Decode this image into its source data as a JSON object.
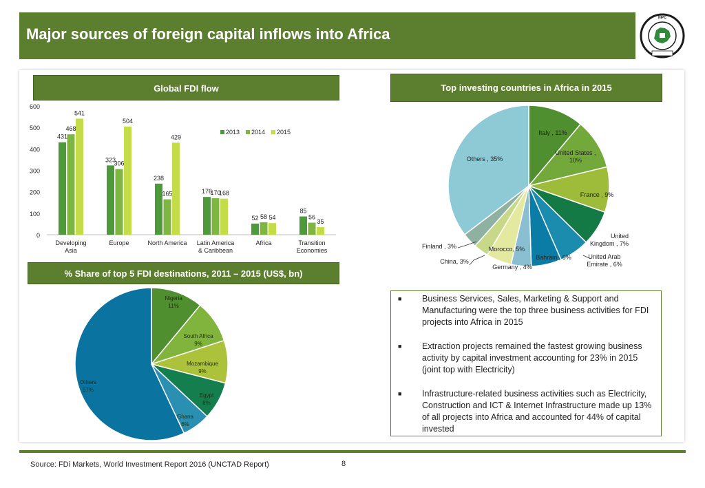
{
  "page": {
    "title": "Major sources of foreign capital inflows into Africa",
    "source": "Source: FDi Markets, World Investment Report 2016 (UNCTAD Report)",
    "page_number": "8",
    "logo_text": "NIGERIAN INVESTMENT PROMOTION COMMISSION"
  },
  "headers": {
    "global_fdi": "Global FDI flow",
    "top_countries": "Top investing countries in Africa in 2015",
    "top_destinations": "% Share of top 5 FDI destinations, 2011 – 2015 (US$, bn)"
  },
  "bullets": [
    "Business Services, Sales, Marketing & Support and Manufacturing were the top three business activities for FDI projects into Africa in 2015",
    "Extraction projects remained the fastest growing business activity by capital investment accounting for 23% in 2015 (joint top with Electricity)",
    "Infrastructure-related business activities such as Electricity, Construction and ICT & Internet Infrastructure made up 13% of all projects into Africa and accounted for 44% of capital invested"
  ],
  "colors": {
    "brand_green": "#5b7f2e",
    "s2013": "#4e9a3a",
    "s2014": "#7fb641",
    "s2015": "#c5dc49"
  },
  "chart_data": [
    {
      "type": "bar",
      "categories": [
        [
          "Developing",
          "Asia"
        ],
        [
          "Europe"
        ],
        [
          "North America"
        ],
        [
          "Latin America",
          "& Caribbean"
        ],
        [
          "Africa"
        ],
        [
          "Transition",
          "Economies"
        ]
      ],
      "series": [
        {
          "name": "2013",
          "values": [
            431,
            323,
            238,
            176,
            52,
            85
          ],
          "color": "#4e9a3a"
        },
        {
          "name": "2014",
          "values": [
            468,
            306,
            165,
            170,
            58,
            56
          ],
          "color": "#7fb641"
        },
        {
          "name": "2015",
          "values": [
            541,
            504,
            429,
            168,
            54,
            35
          ],
          "color": "#c5dc49"
        }
      ],
      "y_ticks": [
        0,
        100,
        200,
        300,
        400,
        500,
        600
      ],
      "ylim": [
        0,
        600
      ],
      "legend": "top-right",
      "grid": false
    },
    {
      "type": "pie",
      "slices": [
        {
          "label": "Italy , 11%",
          "value": 11,
          "color": "#4f8f2f"
        },
        {
          "label": "United States , 10%",
          "value": 10,
          "color": "#72a93a"
        },
        {
          "label": "France , 9%",
          "value": 9,
          "color": "#9ebc3a"
        },
        {
          "label": "United Kingdom , 7%",
          "value": 7,
          "color": "#137a45"
        },
        {
          "label": "United Arab Emirate , 6%",
          "value": 6,
          "color": "#1b8cad"
        },
        {
          "label": "Bahrain , 6%",
          "value": 6,
          "color": "#0b7ca6"
        },
        {
          "label": "Germany , 4%",
          "value": 4,
          "color": "#89bfd0"
        },
        {
          "label": "Morocco, 5%",
          "value": 5,
          "color": "#e4e9a0"
        },
        {
          "label": "China, 3%",
          "value": 3,
          "color": "#c7d988"
        },
        {
          "label": "Finland , 3%",
          "value": 3,
          "color": "#8fb1a2"
        },
        {
          "label": "Others , 35%",
          "value": 35,
          "color": "#8ec9d6"
        }
      ]
    },
    {
      "type": "pie",
      "slices": [
        {
          "label": "Nigeria",
          "pct": "11%",
          "value": 11,
          "color": "#4f8f2f"
        },
        {
          "label": "South Africa",
          "pct": "9%",
          "value": 9,
          "color": "#80b43c"
        },
        {
          "label": "Mozambique",
          "pct": "9%",
          "value": 9,
          "color": "#adc23b"
        },
        {
          "label": "Egypt",
          "pct": "8%",
          "value": 8,
          "color": "#157e4e"
        },
        {
          "label": "Ghana",
          "pct": "6%",
          "value": 6,
          "color": "#2a8fb0"
        },
        {
          "label": "Others",
          "pct": "57%",
          "value": 57,
          "color": "#0a739f"
        }
      ]
    }
  ]
}
